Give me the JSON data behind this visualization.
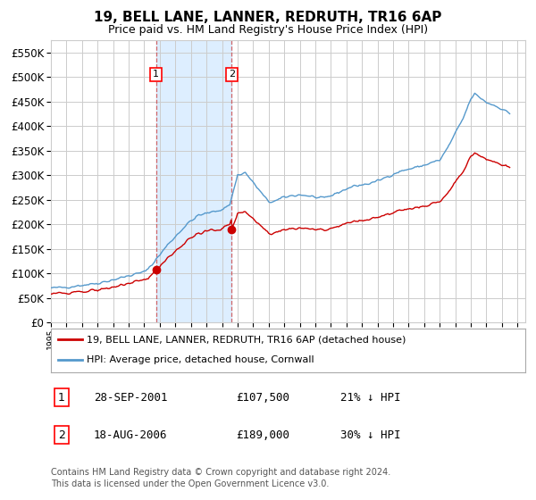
{
  "title": "19, BELL LANE, LANNER, REDRUTH, TR16 6AP",
  "subtitle": "Price paid vs. HM Land Registry's House Price Index (HPI)",
  "footer": "Contains HM Land Registry data © Crown copyright and database right 2024.\nThis data is licensed under the Open Government Licence v3.0.",
  "legend_line1": "19, BELL LANE, LANNER, REDRUTH, TR16 6AP (detached house)",
  "legend_line2": "HPI: Average price, detached house, Cornwall",
  "purchase1_label": "1",
  "purchase1_date": "28-SEP-2001",
  "purchase1_price": "£107,500",
  "purchase1_hpi": "21% ↓ HPI",
  "purchase2_label": "2",
  "purchase2_date": "18-AUG-2006",
  "purchase2_price": "£189,000",
  "purchase2_hpi": "30% ↓ HPI",
  "purchase1_year": 2001.75,
  "purchase2_year": 2006.625,
  "purchase1_price_val": 107500,
  "purchase2_price_val": 189000,
  "ylim": [
    0,
    575000
  ],
  "xlim": [
    1995.0,
    2025.5
  ],
  "red_color": "#cc0000",
  "blue_color": "#5599cc",
  "shade_color": "#ddeeff",
  "grid_color": "#cccccc",
  "background_color": "#ffffff",
  "title_fontsize": 11,
  "subtitle_fontsize": 9
}
